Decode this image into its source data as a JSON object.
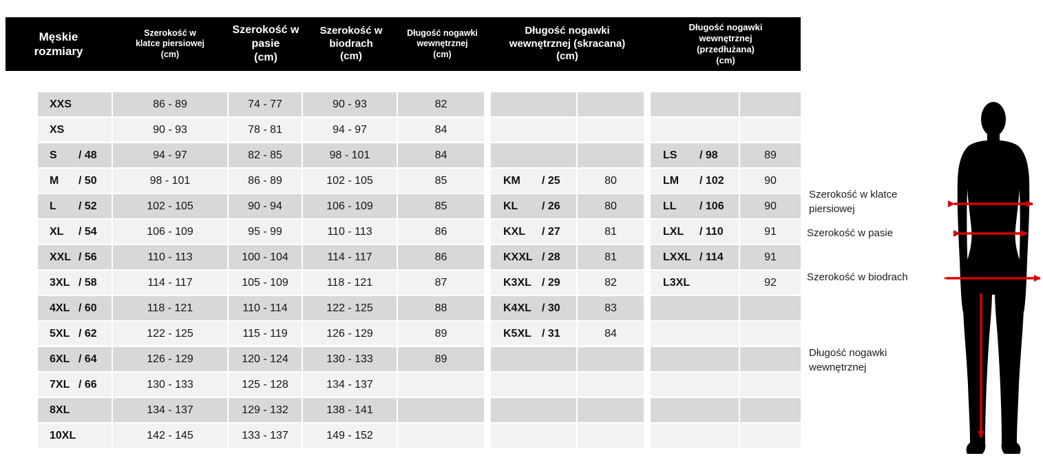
{
  "title": "Męskie rozmiary",
  "colors": {
    "header_bg": "#000000",
    "header_text": "#ffffff",
    "row_dark": "#d8d8d8",
    "row_light": "#f2f2f2",
    "arrow_red": "#d60000",
    "silhouette": "#000000"
  },
  "header": {
    "cols": [
      {
        "text": "Męskie\nrozmiary"
      },
      {
        "text": "Szerokość w\nklatce piersiowej\n(cm)"
      },
      {
        "text": "Szerokość w\npasie\n(cm)"
      },
      {
        "text": "Szerokość w\nbiodrach\n(cm)"
      },
      {
        "text": "Długość nogawki\nwewnętrznej\n(cm)"
      },
      {
        "text": "Długość nogawki\nwewnętrznej (skracana)\n(cm)"
      },
      {
        "text": "Długość nogawki\nwewnętrznej\n(przedłużana)\n(cm)"
      }
    ]
  },
  "chart_data": {
    "type": "table",
    "title": "Męskie rozmiary",
    "columns": [
      "Męskie rozmiary",
      "Szerokość w klatce piersiowej (cm)",
      "Szerokość w pasie (cm)",
      "Szerokość w biodrach (cm)",
      "Długość nogawki wewnętrznej (cm)",
      "Długość nogawki wewnętrznej (skracana) (cm)",
      "Długość nogawki wewnętrznej (przedłużana) (cm)"
    ],
    "rows": [
      {
        "size": "XXS",
        "code": "",
        "chest": "86 - 89",
        "waist": "74 - 77",
        "hips": "90 - 93",
        "leg": "82",
        "k_size": "",
        "k_code": "",
        "k_leg": "",
        "l_size": "",
        "l_code": "",
        "l_leg": ""
      },
      {
        "size": "XS",
        "code": "",
        "chest": "90 - 93",
        "waist": "78 - 81",
        "hips": "94 - 97",
        "leg": "84",
        "k_size": "",
        "k_code": "",
        "k_leg": "",
        "l_size": "",
        "l_code": "",
        "l_leg": ""
      },
      {
        "size": "S",
        "code": "/ 48",
        "chest": "94 - 97",
        "waist": "82 - 85",
        "hips": "98 - 101",
        "leg": "84",
        "k_size": "",
        "k_code": "",
        "k_leg": "",
        "l_size": "LS",
        "l_code": "/ 98",
        "l_leg": "89"
      },
      {
        "size": "M",
        "code": "/ 50",
        "chest": "98 - 101",
        "waist": "86 - 89",
        "hips": "102 - 105",
        "leg": "85",
        "k_size": "KM",
        "k_code": "/ 25",
        "k_leg": "80",
        "l_size": "LM",
        "l_code": "/ 102",
        "l_leg": "90"
      },
      {
        "size": "L",
        "code": "/ 52",
        "chest": "102 - 105",
        "waist": "90 - 94",
        "hips": "106 - 109",
        "leg": "85",
        "k_size": "KL",
        "k_code": "/ 26",
        "k_leg": "80",
        "l_size": "LL",
        "l_code": "/ 106",
        "l_leg": "90"
      },
      {
        "size": "XL",
        "code": "/ 54",
        "chest": "106 - 109",
        "waist": "95 - 99",
        "hips": "110 - 113",
        "leg": "86",
        "k_size": "KXL",
        "k_code": "/ 27",
        "k_leg": "81",
        "l_size": "LXL",
        "l_code": "/ 110",
        "l_leg": "91"
      },
      {
        "size": "XXL",
        "code": "/ 56",
        "chest": "110 - 113",
        "waist": "100 - 104",
        "hips": "114 - 117",
        "leg": "86",
        "k_size": "KXXL",
        "k_code": "/ 28",
        "k_leg": "81",
        "l_size": "LXXL",
        "l_code": "/ 114",
        "l_leg": "91"
      },
      {
        "size": "3XL",
        "code": "/ 58",
        "chest": "114 - 117",
        "waist": "105 - 109",
        "hips": "118 - 121",
        "leg": "87",
        "k_size": "K3XL",
        "k_code": "/ 29",
        "k_leg": "82",
        "l_size": "L3XL",
        "l_code": "",
        "l_leg": "92"
      },
      {
        "size": "4XL",
        "code": "/ 60",
        "chest": "118 - 121",
        "waist": "110 - 114",
        "hips": "122 - 125",
        "leg": "88",
        "k_size": "K4XL",
        "k_code": "/ 30",
        "k_leg": "83",
        "l_size": "",
        "l_code": "",
        "l_leg": ""
      },
      {
        "size": "5XL",
        "code": "/ 62",
        "chest": "122 - 125",
        "waist": "115 - 119",
        "hips": "126 - 129",
        "leg": "89",
        "k_size": "K5XL",
        "k_code": "/ 31",
        "k_leg": "84",
        "l_size": "",
        "l_code": "",
        "l_leg": ""
      },
      {
        "size": "6XL",
        "code": "/ 64",
        "chest": "126 - 129",
        "waist": "120 - 124",
        "hips": "130 - 133",
        "leg": "89",
        "k_size": "",
        "k_code": "",
        "k_leg": "",
        "l_size": "",
        "l_code": "",
        "l_leg": ""
      },
      {
        "size": "7XL",
        "code": "/ 66",
        "chest": "130 - 133",
        "waist": "125 - 128",
        "hips": "134 - 137",
        "leg": "",
        "k_size": "",
        "k_code": "",
        "k_leg": "",
        "l_size": "",
        "l_code": "",
        "l_leg": ""
      },
      {
        "size": "8XL",
        "code": "",
        "chest": "134 - 137",
        "waist": "129 - 132",
        "hips": "138 - 141",
        "leg": "",
        "k_size": "",
        "k_code": "",
        "k_leg": "",
        "l_size": "",
        "l_code": "",
        "l_leg": ""
      },
      {
        "size": "10XL",
        "code": "",
        "chest": "142 - 145",
        "waist": "133 - 137",
        "hips": "149 - 152",
        "leg": "",
        "k_size": "",
        "k_code": "",
        "k_leg": "",
        "l_size": "",
        "l_code": "",
        "l_leg": ""
      }
    ]
  },
  "figure": {
    "labels": [
      "Szerokość w klatce\npiersiowej",
      "Szerokość w pasie",
      "Szerokość w biodrach",
      "Długość nogawki\nwewnętrznej"
    ]
  }
}
